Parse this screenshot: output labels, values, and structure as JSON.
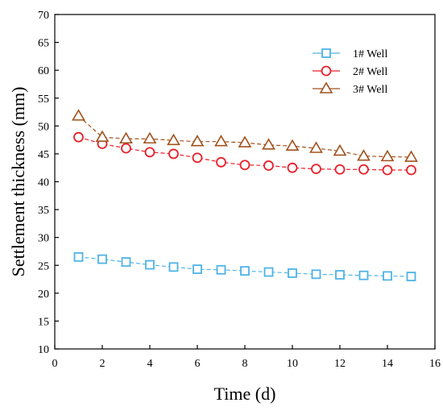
{
  "chart_data": {
    "type": "line",
    "xlabel": "Time (d)",
    "ylabel": "Settlement thickness (mm)",
    "xlim": [
      0,
      16
    ],
    "ylim": [
      10,
      70
    ],
    "xticks": [
      0,
      2,
      4,
      6,
      8,
      10,
      12,
      14,
      16
    ],
    "yticks": [
      10,
      15,
      20,
      25,
      30,
      35,
      40,
      45,
      50,
      55,
      60,
      65,
      70
    ],
    "grid": false,
    "legend_position": "top-right",
    "x": [
      1,
      2,
      3,
      4,
      5,
      6,
      7,
      8,
      9,
      10,
      11,
      12,
      13,
      14,
      15
    ],
    "series": [
      {
        "name": "1# Well",
        "marker": "square",
        "color": "#4fb3e6",
        "values": [
          26.5,
          26.1,
          25.6,
          25.1,
          24.7,
          24.3,
          24.2,
          24.0,
          23.8,
          23.6,
          23.4,
          23.3,
          23.2,
          23.1,
          23.0
        ]
      },
      {
        "name": "2# Well",
        "marker": "circle",
        "color": "#e8202a",
        "values": [
          48.0,
          46.8,
          46.0,
          45.3,
          45.0,
          44.3,
          43.5,
          43.0,
          42.9,
          42.5,
          42.3,
          42.2,
          42.2,
          42.1,
          42.1
        ]
      },
      {
        "name": "3# Well",
        "marker": "triangle",
        "color": "#a0521e",
        "values": [
          51.8,
          48.0,
          47.7,
          47.7,
          47.4,
          47.2,
          47.2,
          47.0,
          46.6,
          46.4,
          46.0,
          45.5,
          44.6,
          44.5,
          44.4
        ]
      }
    ]
  }
}
